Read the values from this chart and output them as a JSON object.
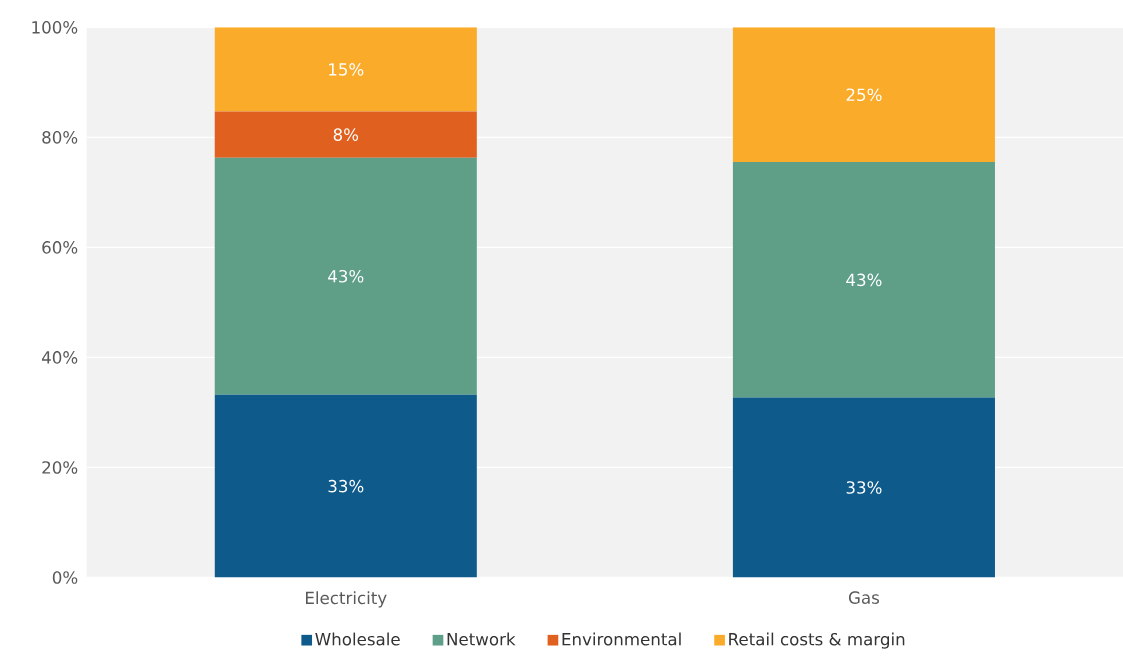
{
  "chart_data": {
    "type": "bar",
    "stacked": true,
    "categories": [
      "Electricity",
      "Gas"
    ],
    "series": [
      {
        "name": "Wholesale",
        "color": "#0e5a8a",
        "values": [
          33.2,
          32.7
        ],
        "value_labels": [
          "33%",
          "33%"
        ]
      },
      {
        "name": "Network",
        "color": "#5f9f88",
        "values": [
          43.1,
          42.8
        ],
        "value_labels": [
          "43%",
          "43%"
        ]
      },
      {
        "name": "Environmental",
        "color": "#e06020",
        "values": [
          8.4,
          null
        ],
        "value_labels": [
          "8%",
          null
        ]
      },
      {
        "name": "Retail costs & margin",
        "color": "#fbab2a",
        "values": [
          15.3,
          24.5
        ],
        "value_labels": [
          "15%",
          "25%"
        ]
      }
    ],
    "ylim": [
      0,
      100
    ],
    "yticks": [
      {
        "value": 0,
        "label": "0%"
      },
      {
        "value": 20,
        "label": "20%"
      },
      {
        "value": 40,
        "label": "40%"
      },
      {
        "value": 60,
        "label": "60%"
      },
      {
        "value": 80,
        "label": "80%"
      },
      {
        "value": 100,
        "label": "100%"
      }
    ],
    "grid": "y",
    "legend": "bottom"
  }
}
